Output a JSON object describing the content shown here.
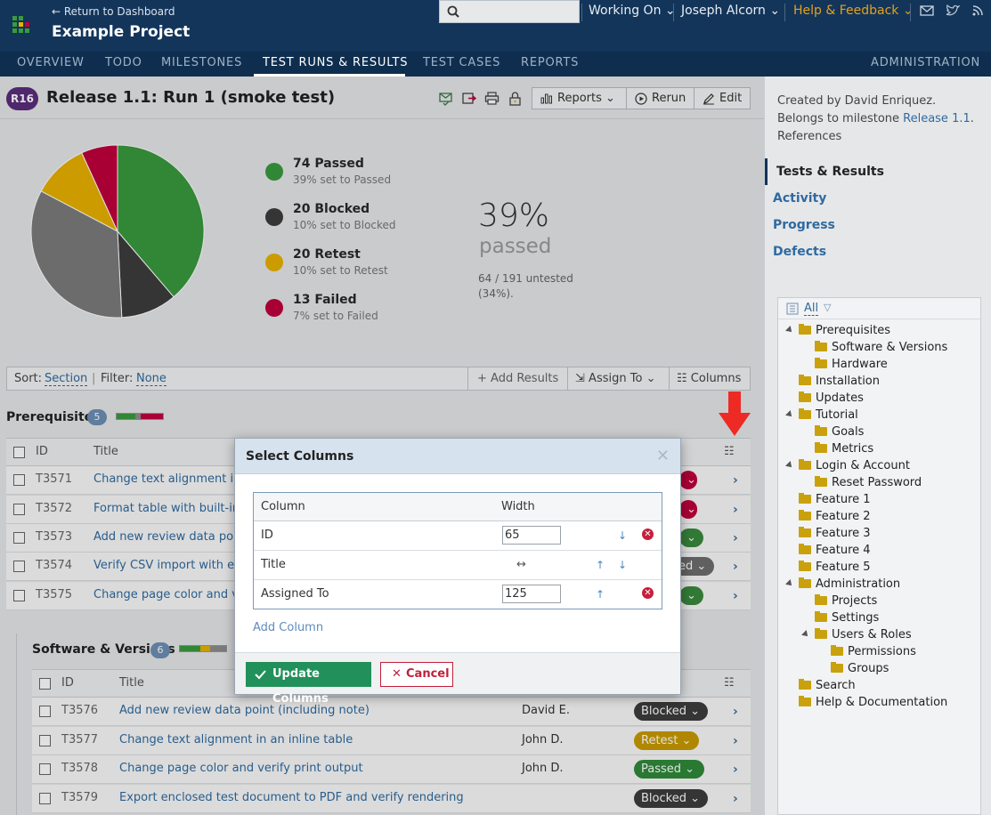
{
  "header": {
    "back_link": "← Return to Dashboard",
    "project": "Example Project",
    "menu": {
      "working_on": "Working On",
      "user": "Joseph Alcorn",
      "help": "Help & Feedback"
    }
  },
  "nav": {
    "overview": "OVERVIEW",
    "todo": "TODO",
    "milestones": "MILESTONES",
    "runs": "TEST RUNS & RESULTS",
    "cases": "TEST CASES",
    "reports": "REPORTS",
    "admin": "ADMINISTRATION"
  },
  "run": {
    "badge": "R16",
    "title": "Release 1.1: Run 1 (smoke test)",
    "reports_btn": "Reports",
    "rerun_btn": "Rerun",
    "edit_btn": "Edit"
  },
  "stats": {
    "passed_title": "74 Passed",
    "passed_sub": "39% set to Passed",
    "blocked_title": "20 Blocked",
    "blocked_sub": "10% set to Blocked",
    "retest_title": "20 Retest",
    "retest_sub": "10% set to Retest",
    "failed_title": "13 Failed",
    "failed_sub": "7% set to Failed",
    "pct": "39%",
    "pct_label": "passed",
    "untested": "64 / 191 untested (34%).",
    "colors": {
      "passed": "#3a9a3e",
      "blocked": "#3d3d3d",
      "retest": "#e8b100",
      "failed": "#c0003c",
      "untested": "#7b7b7b"
    }
  },
  "chart_data": {
    "type": "pie",
    "categories": [
      "Passed",
      "Blocked",
      "Retest",
      "Failed",
      "Untested"
    ],
    "values": [
      74,
      20,
      20,
      13,
      64
    ]
  },
  "sortbar": {
    "sort_label": "Sort:",
    "sort_value": "Section",
    "filter_label": "Filter:",
    "filter_value": "None",
    "add_results": "Add Results",
    "assign_to": "Assign To",
    "columns": "Columns"
  },
  "sections": [
    {
      "name": "Prerequisites",
      "count": "5"
    },
    {
      "name": "Software & Versions",
      "count": "6"
    }
  ],
  "table": {
    "col_id": "ID",
    "col_title": "Title"
  },
  "prereq_rows": [
    {
      "id": "T3571",
      "title": "Change text alignment in a"
    },
    {
      "id": "T3572",
      "title": "Format table with built-in s"
    },
    {
      "id": "T3573",
      "title": "Add new review data point"
    },
    {
      "id": "T3574",
      "title": "Verify CSV import with enc"
    },
    {
      "id": "T3575",
      "title": "Change page color and ver"
    }
  ],
  "prereq_status_peek": [
    "ed"
  ],
  "sw_rows": [
    {
      "id": "T3576",
      "title": "Add new review data point (including note)",
      "assignee": "David E.",
      "status": "Blocked"
    },
    {
      "id": "T3577",
      "title": "Change text alignment in an inline table",
      "assignee": "John D.",
      "status": "Retest"
    },
    {
      "id": "T3578",
      "title": "Change page color and verify print output",
      "assignee": "John D.",
      "status": "Passed"
    },
    {
      "id": "T3579",
      "title": "Export enclosed test document to PDF and verify rendering",
      "assignee": "",
      "status": "Blocked"
    }
  ],
  "sidebar": {
    "info_prefix": "Created by David Enriquez. Belongs to milestone ",
    "milestone_link": "Release 1.1",
    "info_suffix": ".",
    "references": "References",
    "nav": [
      "Tests & Results",
      "Activity",
      "Progress",
      "Defects"
    ],
    "tree_filter": "All",
    "tree": [
      "Prerequisites",
      "Software & Versions",
      "Hardware",
      "Installation",
      "Updates",
      "Tutorial",
      "Goals",
      "Metrics",
      "Login & Account",
      "Reset Password",
      "Feature 1",
      "Feature 2",
      "Feature 3",
      "Feature 4",
      "Feature 5",
      "Administration",
      "Projects",
      "Settings",
      "Users & Roles",
      "Permissions",
      "Groups",
      "Search",
      "Help & Documentation"
    ]
  },
  "modal": {
    "title": "Select Columns",
    "col_header": "Column",
    "width_header": "Width",
    "rows": [
      {
        "name": "ID",
        "width": "65"
      },
      {
        "name": "Title",
        "width": "↔"
      },
      {
        "name": "Assigned To",
        "width": "125"
      }
    ],
    "add_column": "Add Column",
    "update": "Update Columns",
    "cancel": "Cancel"
  }
}
